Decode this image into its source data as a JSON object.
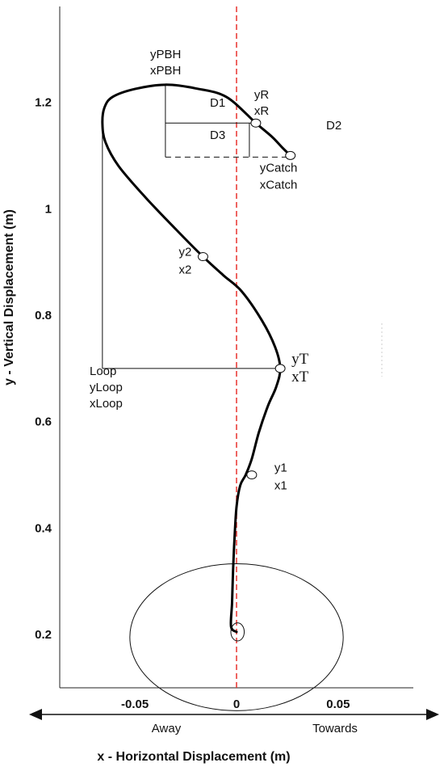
{
  "chart_data": {
    "type": "line",
    "title": "",
    "xlabel": "x - Horizontal Displacement (m)",
    "ylabel": "y - Vertical Displacement (m)",
    "xlim": [
      -0.087,
      0.087
    ],
    "ylim": [
      0.1,
      1.38
    ],
    "x_ticks": [
      {
        "value": -0.05,
        "label": "-0.05"
      },
      {
        "value": 0,
        "label": "0"
      },
      {
        "value": 0.05,
        "label": "0.05"
      }
    ],
    "y_ticks": [
      {
        "value": 0.2,
        "label": "0.2"
      },
      {
        "value": 0.4,
        "label": "0.4"
      },
      {
        "value": 0.6,
        "label": "0.6"
      },
      {
        "value": 0.8,
        "label": "0.8"
      },
      {
        "value": 1,
        "label": "1"
      },
      {
        "value": 1.2,
        "label": "1.2"
      }
    ],
    "direction_labels": {
      "left": "Away",
      "right": "Towards"
    },
    "bar_path": [
      {
        "x": 0.0,
        "y": 0.205
      },
      {
        "x": -0.0027,
        "y": 0.215
      },
      {
        "x": -0.0022,
        "y": 0.26
      },
      {
        "x": -0.0017,
        "y": 0.32
      },
      {
        "x": -0.001,
        "y": 0.38
      },
      {
        "x": 0.0,
        "y": 0.44
      },
      {
        "x": 0.0018,
        "y": 0.48
      },
      {
        "x": 0.0045,
        "y": 0.5
      },
      {
        "x": 0.0075,
        "y": 0.53
      },
      {
        "x": 0.011,
        "y": 0.58
      },
      {
        "x": 0.0155,
        "y": 0.63
      },
      {
        "x": 0.0195,
        "y": 0.665
      },
      {
        "x": 0.0215,
        "y": 0.7
      },
      {
        "x": 0.019,
        "y": 0.74
      },
      {
        "x": 0.0125,
        "y": 0.79
      },
      {
        "x": 0.0025,
        "y": 0.845
      },
      {
        "x": -0.0065,
        "y": 0.875
      },
      {
        "x": -0.0165,
        "y": 0.91
      },
      {
        "x": -0.0295,
        "y": 0.96
      },
      {
        "x": -0.0445,
        "y": 1.02
      },
      {
        "x": -0.058,
        "y": 1.08
      },
      {
        "x": -0.0645,
        "y": 1.125
      },
      {
        "x": -0.066,
        "y": 1.16
      },
      {
        "x": -0.065,
        "y": 1.19
      },
      {
        "x": -0.061,
        "y": 1.21
      },
      {
        "x": -0.05,
        "y": 1.225
      },
      {
        "x": -0.035,
        "y": 1.233
      },
      {
        "x": -0.02,
        "y": 1.226
      },
      {
        "x": -0.005,
        "y": 1.21
      },
      {
        "x": 0.0095,
        "y": 1.161
      },
      {
        "x": 0.0175,
        "y": 1.135
      },
      {
        "x": 0.0225,
        "y": 1.115
      },
      {
        "x": 0.0265,
        "y": 1.1
      }
    ],
    "plate_circle": {
      "cx": 0.0,
      "cy": 0.195,
      "rx": 0.0525,
      "ry": 0.138
    },
    "start_circle": {
      "cx": 0.0005,
      "cy": 0.205,
      "rx": 0.0025,
      "ry": 0.017
    },
    "key_points": [
      {
        "id": "t",
        "x": 0.0215,
        "y": 0.7,
        "lines": [
          "yT",
          "xT"
        ]
      },
      {
        "id": "p1",
        "x": 0.0075,
        "y": 0.5,
        "lines": [
          "y1",
          "x1"
        ]
      },
      {
        "id": "p2",
        "x": -0.0165,
        "y": 0.91,
        "lines": [
          "y2",
          "x2"
        ]
      },
      {
        "id": "r",
        "x": 0.0095,
        "y": 1.161,
        "lines": [
          "yR",
          "xR"
        ]
      },
      {
        "id": "catch",
        "x": 0.0265,
        "y": 1.1,
        "lines": [
          "yCatch",
          "xCatch"
        ]
      }
    ],
    "pbh_label": [
      "yPBH",
      "xPBH"
    ],
    "loop_label": [
      "Loop",
      "yLoop",
      "xLoop"
    ],
    "distance_labels": {
      "d1": "D1",
      "d2": "D2",
      "d3": "D3"
    }
  }
}
